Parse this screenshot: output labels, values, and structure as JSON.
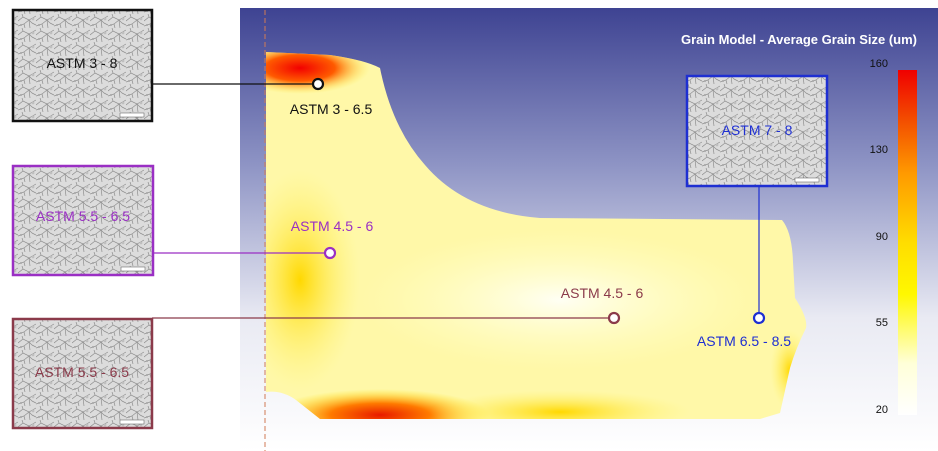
{
  "title": "Grain Model - Average Grain Size (um)",
  "colorbar": {
    "ticks": [
      "160",
      "130",
      "90",
      "55",
      "20"
    ],
    "colors": [
      "#f00000",
      "#f35000",
      "#ff9a00",
      "#ffdd00",
      "#fff800",
      "#ffffd8",
      "#ffffff"
    ]
  },
  "insets": {
    "top_left": {
      "label": "ASTM 3 - 8",
      "border": "#111111",
      "text_color": "#111111"
    },
    "mid_left": {
      "label": "ASTM 5.5 - 6.5",
      "border": "#9a2fc4",
      "text_color": "#9a2fc4"
    },
    "bottom_left": {
      "label": "ASTM 5.5 - 6.5",
      "border": "#8b3a4a",
      "text_color": "#8b3a4a"
    },
    "right": {
      "label": "ASTM 7 - 8",
      "border": "#1e2fd2",
      "text_color": "#1e2fd2"
    }
  },
  "points": {
    "p1": {
      "label": "ASTM 3 - 6.5",
      "color": "#111111"
    },
    "p2": {
      "label": "ASTM 4.5 - 6",
      "color": "#9a2fc4"
    },
    "p3": {
      "label": "ASTM 4.5 - 6",
      "color": "#8b3a4a"
    },
    "p4": {
      "label": "ASTM 6.5 - 8.5",
      "color": "#1e2fd2"
    }
  }
}
